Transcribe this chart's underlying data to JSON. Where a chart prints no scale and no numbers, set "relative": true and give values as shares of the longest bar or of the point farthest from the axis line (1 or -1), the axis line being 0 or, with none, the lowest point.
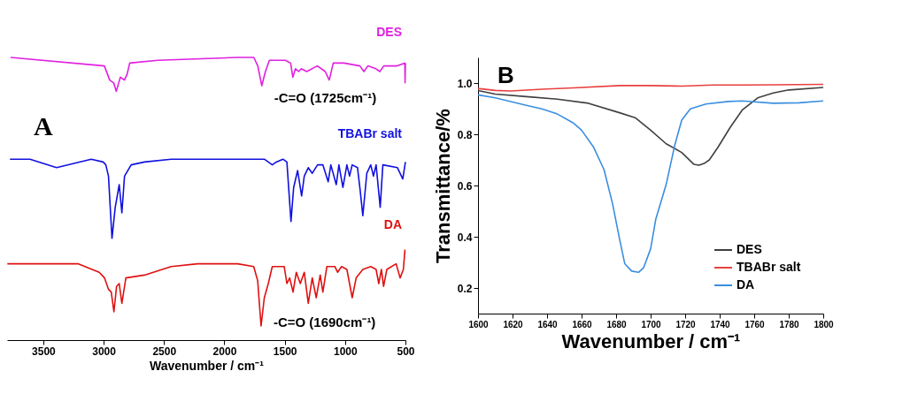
{
  "chart_data": [
    {
      "type": "line",
      "relative": true,
      "xlabel": "Wavenumber / cm⁻¹",
      "xlim": [
        3800,
        500
      ],
      "xticks": [
        3500,
        3000,
        2500,
        2000,
        1500,
        1000,
        500
      ],
      "grid": false,
      "annotations": [
        "A",
        {
          "text": "-C=O (1725cm⁻¹)",
          "x": 1690,
          "y": 0.9
        },
        {
          "text": "-C=O (1690cm⁻¹)",
          "x": 1696,
          "y": 0.05
        }
      ],
      "series": [
        {
          "name": "DES",
          "color": "#e020e0",
          "x": [
            3770,
            2994,
            2950,
            2917,
            2895,
            2862,
            2828,
            2806,
            2784,
            2552,
            1889,
            1756,
            1723,
            1690,
            1660,
            1627,
            1495,
            1451,
            1433,
            1411,
            1384,
            1362,
            1318,
            1230,
            1164,
            1131,
            1098,
            1009,
            877,
            844,
            811,
            745,
            712,
            679,
            569,
            505,
            503,
            500
          ],
          "values": [
            1.0,
            0.97,
            0.92,
            0.91,
            0.88,
            0.93,
            0.92,
            0.94,
            0.98,
            0.99,
            1.0,
            1.0,
            0.97,
            0.9,
            0.95,
            0.99,
            0.99,
            0.98,
            0.93,
            0.96,
            0.95,
            0.96,
            0.95,
            0.97,
            0.95,
            0.92,
            0.98,
            0.98,
            0.97,
            0.95,
            0.97,
            0.96,
            0.95,
            0.97,
            0.97,
            0.98,
            0.91,
            0.98
          ]
        },
        {
          "name": "TBABr salt",
          "color": "#1010e0",
          "x": [
            3776,
            3610,
            3390,
            3103,
            3004,
            2982,
            2960,
            2931,
            2904,
            2871,
            2849,
            2827,
            2772,
            2662,
            2441,
            1669,
            1603,
            1570,
            1515,
            1482,
            1448,
            1426,
            1393,
            1360,
            1338,
            1305,
            1272,
            1228,
            1184,
            1140,
            1118,
            1073,
            1051,
            1018,
            985,
            963,
            941,
            897,
            875,
            853,
            820,
            787,
            765,
            743,
            709,
            687,
            566,
            522,
            500
          ],
          "values": [
            0.64,
            0.64,
            0.61,
            0.64,
            0.63,
            0.62,
            0.58,
            0.36,
            0.47,
            0.55,
            0.45,
            0.58,
            0.62,
            0.63,
            0.64,
            0.64,
            0.62,
            0.63,
            0.64,
            0.63,
            0.42,
            0.54,
            0.6,
            0.51,
            0.58,
            0.61,
            0.59,
            0.62,
            0.62,
            0.56,
            0.62,
            0.55,
            0.62,
            0.54,
            0.62,
            0.58,
            0.62,
            0.61,
            0.53,
            0.44,
            0.59,
            0.62,
            0.58,
            0.62,
            0.47,
            0.62,
            0.61,
            0.57,
            0.63
          ]
        },
        {
          "name": "DA",
          "color": "#e01010",
          "x": [
            3798,
            3434,
            3213,
            3037,
            2993,
            2960,
            2937,
            2915,
            2893,
            2871,
            2849,
            2816,
            2662,
            2441,
            2221,
            1890,
            1757,
            1724,
            1696,
            1669,
            1636,
            1603,
            1504,
            1482,
            1459,
            1431,
            1404,
            1371,
            1338,
            1305,
            1272,
            1239,
            1206,
            1184,
            1151,
            1084,
            1062,
            1029,
            985,
            941,
            908,
            853,
            787,
            743,
            721,
            699,
            681,
            654,
            577,
            544,
            517,
            504
          ],
          "values": [
            0.27,
            0.27,
            0.27,
            0.24,
            0.22,
            0.18,
            0.17,
            0.1,
            0.19,
            0.2,
            0.13,
            0.22,
            0.23,
            0.26,
            0.27,
            0.27,
            0.26,
            0.21,
            0.05,
            0.15,
            0.2,
            0.26,
            0.26,
            0.2,
            0.22,
            0.17,
            0.24,
            0.2,
            0.24,
            0.13,
            0.22,
            0.15,
            0.23,
            0.17,
            0.26,
            0.26,
            0.24,
            0.26,
            0.25,
            0.15,
            0.22,
            0.25,
            0.26,
            0.25,
            0.2,
            0.25,
            0.19,
            0.25,
            0.27,
            0.22,
            0.25,
            0.32
          ]
        }
      ]
    },
    {
      "type": "line",
      "xlabel": "Wavenumber / cm⁻¹",
      "ylabel": "Transmittance/%",
      "xlim": [
        1600,
        1800
      ],
      "xticks": [
        1600,
        1620,
        1640,
        1660,
        1680,
        1700,
        1720,
        1740,
        1760,
        1780,
        1800
      ],
      "ylim": [
        0.1,
        1.1
      ],
      "yticks": [
        0.2,
        0.4,
        0.6,
        0.8,
        {
          "value": 1,
          "label": "1.0"
        }
      ],
      "grid": false,
      "legend": "bottom right",
      "annotations": [
        "B"
      ],
      "series": [
        {
          "name": "DES",
          "color": "#404040",
          "x": [
            1600,
            1610,
            1628,
            1646,
            1664,
            1682,
            1691,
            1700,
            1709,
            1718,
            1725,
            1728,
            1731,
            1734,
            1739,
            1746,
            1753,
            1762,
            1771,
            1780,
            1800
          ],
          "values": [
            0.971,
            0.957,
            0.947,
            0.937,
            0.921,
            0.884,
            0.865,
            0.816,
            0.763,
            0.729,
            0.683,
            0.679,
            0.686,
            0.7,
            0.749,
            0.826,
            0.894,
            0.942,
            0.961,
            0.973,
            0.983
          ]
        },
        {
          "name": "TBABr salt",
          "color": "#e84040",
          "x": [
            1600,
            1610,
            1619,
            1637,
            1655,
            1682,
            1700,
            1718,
            1736,
            1753,
            1771,
            1800
          ],
          "values": [
            0.979,
            0.971,
            0.969,
            0.976,
            0.981,
            0.99,
            0.99,
            0.988,
            0.992,
            0.992,
            0.993,
            0.995
          ]
        },
        {
          "name": "DA",
          "color": "#3a8ee0",
          "x": [
            1600,
            1610,
            1628,
            1637,
            1646,
            1655,
            1660,
            1667,
            1673,
            1678,
            1682,
            1685,
            1689,
            1693,
            1696,
            1700,
            1703,
            1709,
            1714,
            1718,
            1723,
            1732,
            1745,
            1753,
            1771,
            1786,
            1800
          ],
          "values": [
            0.954,
            0.942,
            0.913,
            0.899,
            0.879,
            0.845,
            0.816,
            0.749,
            0.662,
            0.527,
            0.391,
            0.295,
            0.266,
            0.261,
            0.28,
            0.353,
            0.469,
            0.604,
            0.758,
            0.855,
            0.899,
            0.918,
            0.928,
            0.93,
            0.921,
            0.923,
            0.93
          ]
        }
      ]
    }
  ]
}
